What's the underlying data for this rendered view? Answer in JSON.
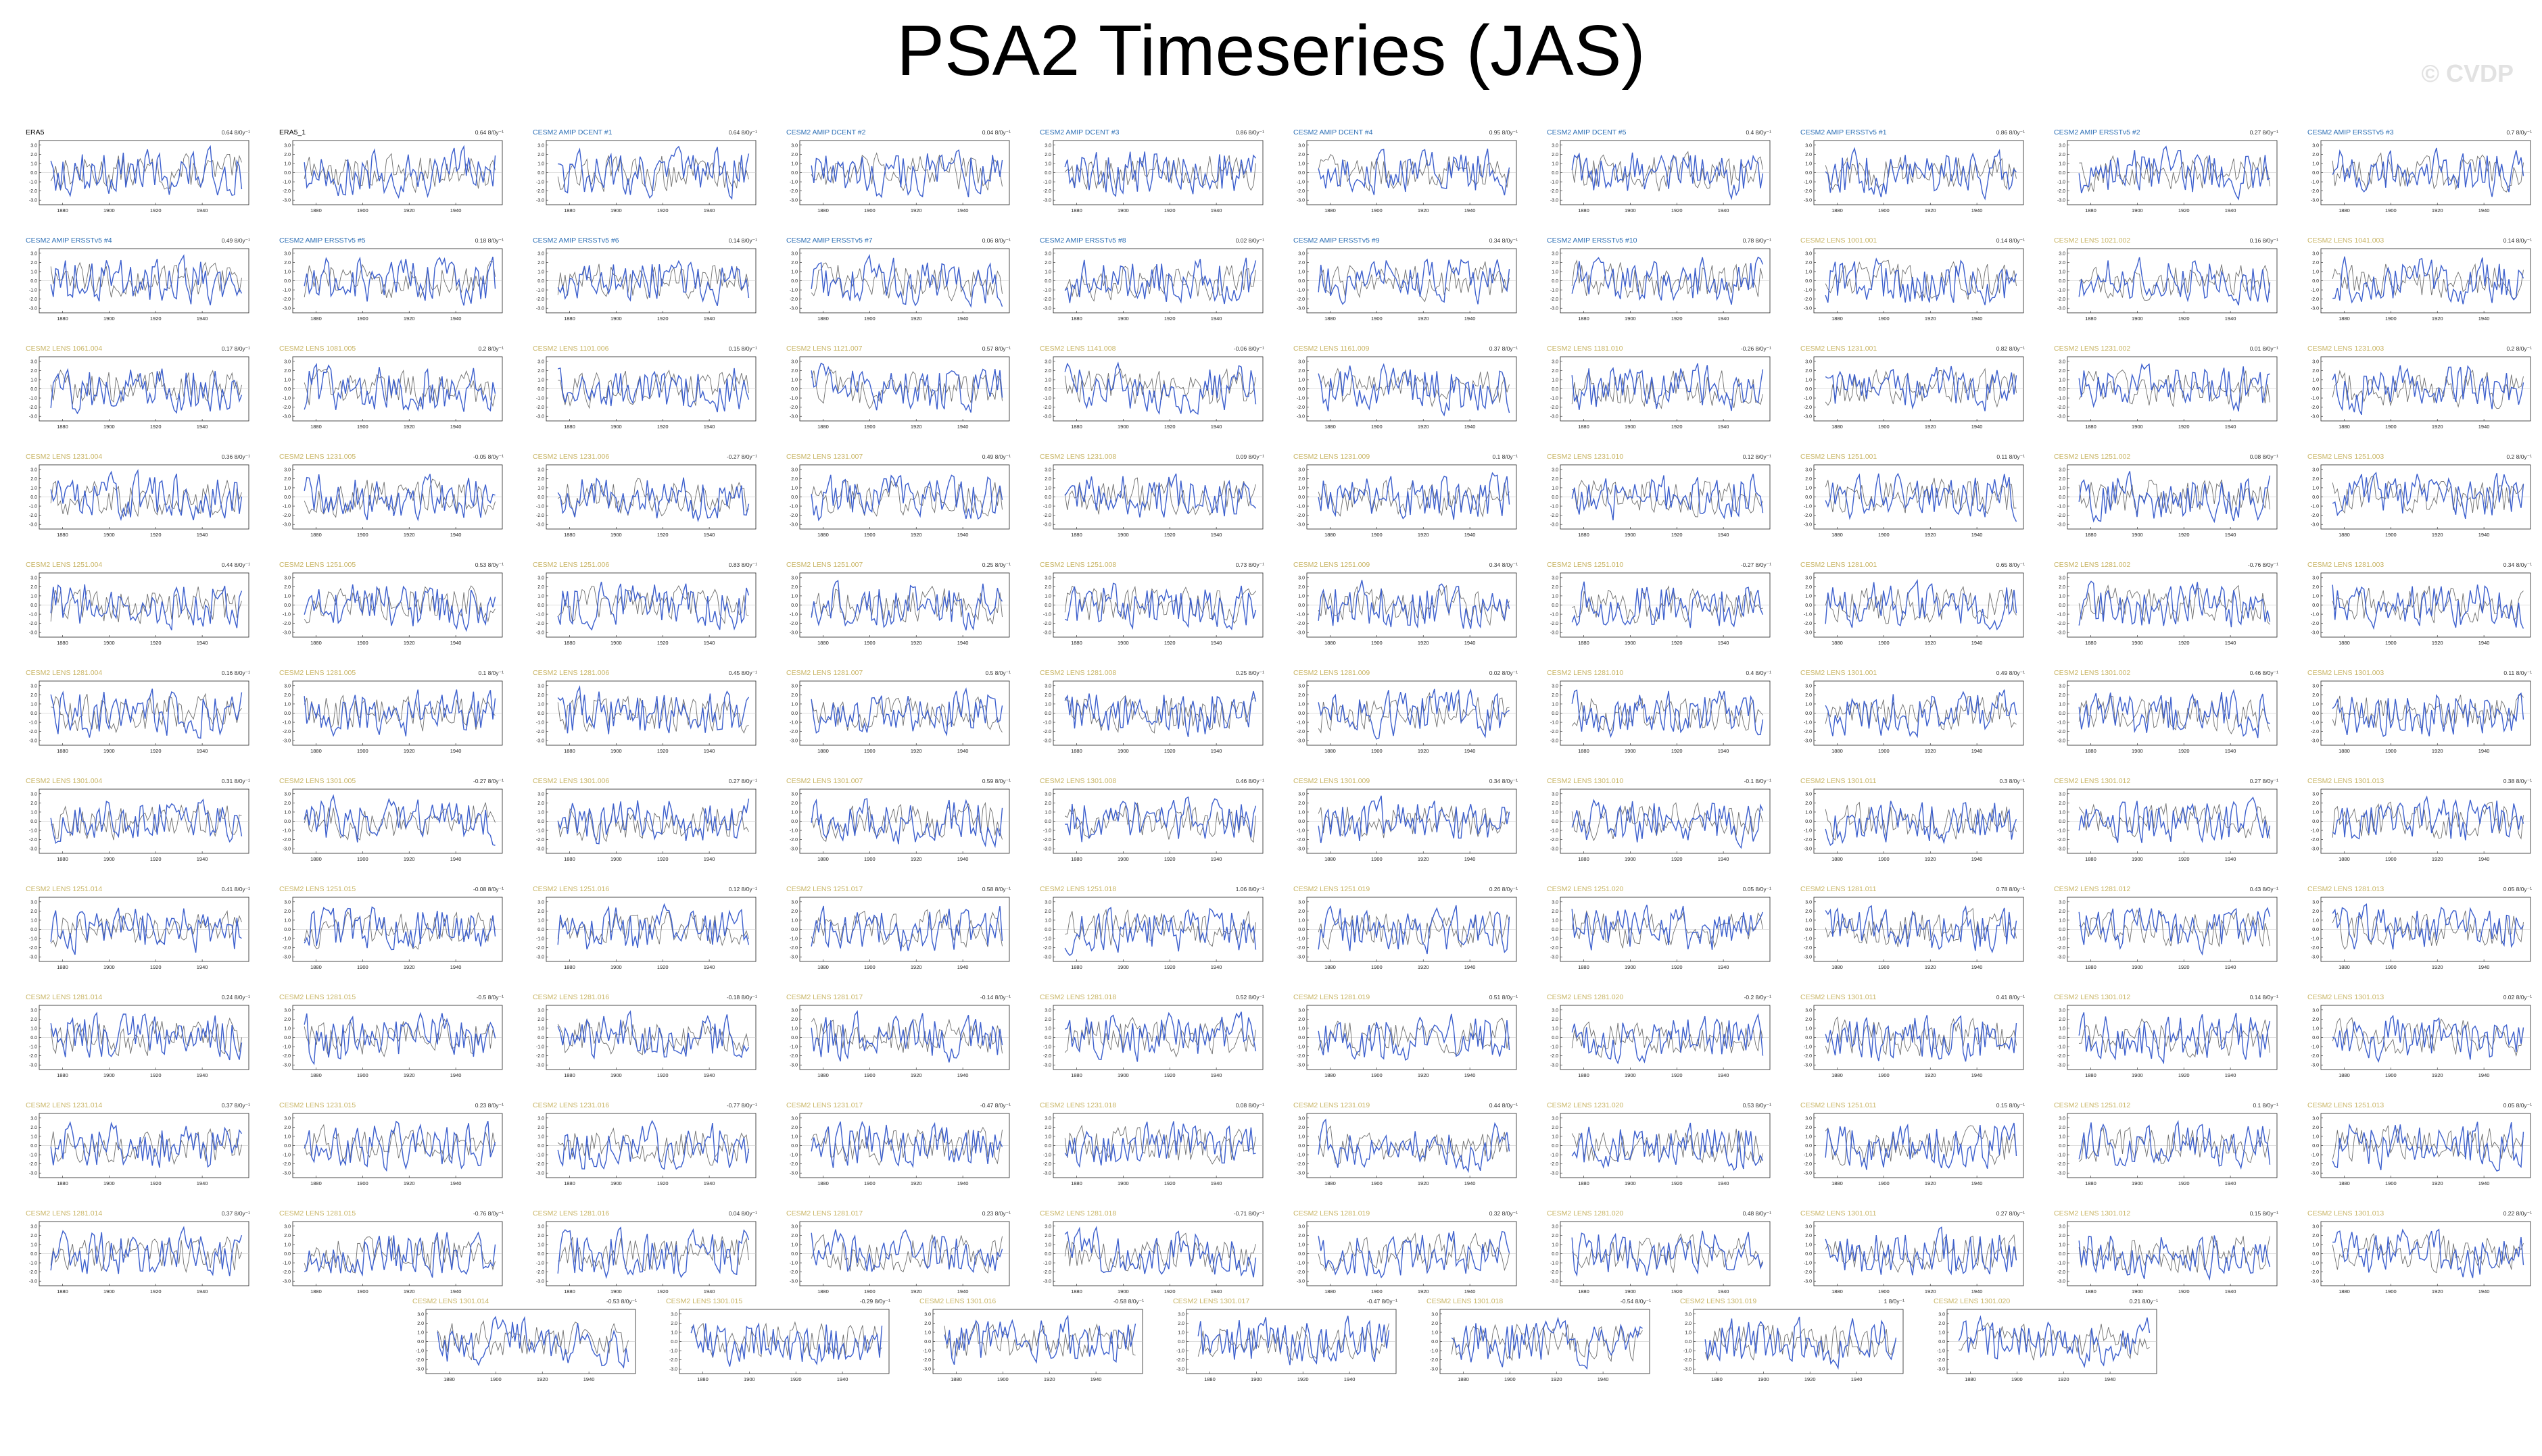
{
  "title": "PSA2 Timeseries (JAS)",
  "credit": "© CVDP",
  "colors": {
    "model": "#3c5fcd",
    "obs": "#6e6e6e",
    "lens": "#c8b464",
    "amip": "#2d6fb5",
    "obsLabel": "#000000"
  },
  "chart_data": {
    "type": "line",
    "layout": "panel grid of paired timeseries (observations in gray, simulation in blue)",
    "x_axis": {
      "ticks": [
        1880,
        1900,
        1920,
        1940
      ],
      "range": [
        1870,
        1960
      ]
    },
    "y_axis": {
      "ticks": [
        3.0,
        2.0,
        1.0,
        0.0,
        -1.0,
        -2.0,
        -3.0
      ],
      "range": [
        -3.5,
        3.5
      ]
    },
    "panels": [
      {
        "label": "ERA5",
        "slope": "0.64 8/0y⁻¹",
        "type": "obs"
      },
      {
        "label": "ERA5_1",
        "slope": "0.64 8/0y⁻¹",
        "type": "obs"
      },
      {
        "label": "CESM2 AMIP DCENT #1",
        "slope": "0.64 8/0y⁻¹",
        "type": "amip"
      },
      {
        "label": "CESM2 AMIP DCENT #2",
        "slope": "0.04 8/0y⁻¹",
        "type": "amip"
      },
      {
        "label": "CESM2 AMIP DCENT #3",
        "slope": "0.86 8/0y⁻¹",
        "type": "amip"
      },
      {
        "label": "CESM2 AMIP DCENT #4",
        "slope": "0.95 8/0y⁻¹",
        "type": "amip"
      },
      {
        "label": "CESM2 AMIP DCENT #5",
        "slope": "0.4 8/0y⁻¹",
        "type": "amip"
      },
      {
        "label": "CESM2 AMIP ERSSTv5 #1",
        "slope": "0.86 8/0y⁻¹",
        "type": "amip"
      },
      {
        "label": "CESM2 AMIP ERSSTv5 #2",
        "slope": "0.27 8/0y⁻¹",
        "type": "amip"
      },
      {
        "label": "CESM2 AMIP ERSSTv5 #3",
        "slope": "0.7 8/0y⁻¹",
        "type": "amip"
      },
      {
        "label": "CESM2 AMIP ERSSTv5 #4",
        "slope": "0.49 8/0y⁻¹",
        "type": "amip"
      },
      {
        "label": "CESM2 AMIP ERSSTv5 #5",
        "slope": "0.18 8/0y⁻¹",
        "type": "amip"
      },
      {
        "label": "CESM2 AMIP ERSSTv5 #6",
        "slope": "0.14 8/0y⁻¹",
        "type": "amip"
      },
      {
        "label": "CESM2 AMIP ERSSTv5 #7",
        "slope": "0.06 8/0y⁻¹",
        "type": "amip"
      },
      {
        "label": "CESM2 AMIP ERSSTv5 #8",
        "slope": "0.02 8/0y⁻¹",
        "type": "amip"
      },
      {
        "label": "CESM2 AMIP ERSSTv5 #9",
        "slope": "0.34 8/0y⁻¹",
        "type": "amip"
      },
      {
        "label": "CESM2 AMIP ERSSTv5 #10",
        "slope": "0.78 8/0y⁻¹",
        "type": "amip"
      },
      {
        "label": "CESM2 LENS 1001.001",
        "slope": "0.14 8/0y⁻¹",
        "type": "lens"
      },
      {
        "label": "CESM2 LENS 1021.002",
        "slope": "0.16 8/0y⁻¹",
        "type": "lens"
      },
      {
        "label": "CESM2 LENS 1041.003",
        "slope": "0.14 8/0y⁻¹",
        "type": "lens"
      },
      {
        "label": "CESM2 LENS 1061.004",
        "slope": "0.17 8/0y⁻¹",
        "type": "lens"
      },
      {
        "label": "CESM2 LENS 1081.005",
        "slope": "0.2 8/0y⁻¹",
        "type": "lens"
      },
      {
        "label": "CESM2 LENS 1101.006",
        "slope": "0.15 8/0y⁻¹",
        "type": "lens"
      },
      {
        "label": "CESM2 LENS 1121.007",
        "slope": "0.57 8/0y⁻¹",
        "type": "lens"
      },
      {
        "label": "CESM2 LENS 1141.008",
        "slope": "-0.06 8/0y⁻¹",
        "type": "lens"
      },
      {
        "label": "CESM2 LENS 1161.009",
        "slope": "0.37 8/0y⁻¹",
        "type": "lens"
      },
      {
        "label": "CESM2 LENS 1181.010",
        "slope": "-0.26 8/0y⁻¹",
        "type": "lens"
      },
      {
        "label": "CESM2 LENS 1231.001",
        "slope": "0.82 8/0y⁻¹",
        "type": "lens"
      },
      {
        "label": "CESM2 LENS 1231.002",
        "slope": "0.01 8/0y⁻¹",
        "type": "lens"
      },
      {
        "label": "CESM2 LENS 1231.003",
        "slope": "0.2 8/0y⁻¹",
        "type": "lens"
      },
      {
        "label": "CESM2 LENS 1231.004",
        "slope": "0.36 8/0y⁻¹",
        "type": "lens"
      },
      {
        "label": "CESM2 LENS 1231.005",
        "slope": "-0.05 8/0y⁻¹",
        "type": "lens"
      },
      {
        "label": "CESM2 LENS 1231.006",
        "slope": "-0.27 8/0y⁻¹",
        "type": "lens"
      },
      {
        "label": "CESM2 LENS 1231.007",
        "slope": "0.49 8/0y⁻¹",
        "type": "lens"
      },
      {
        "label": "CESM2 LENS 1231.008",
        "slope": "0.09 8/0y⁻¹",
        "type": "lens"
      },
      {
        "label": "CESM2 LENS 1231.009",
        "slope": "0.1 8/0y⁻¹",
        "type": "lens"
      },
      {
        "label": "CESM2 LENS 1231.010",
        "slope": "0.12 8/0y⁻¹",
        "type": "lens"
      },
      {
        "label": "CESM2 LENS 1251.001",
        "slope": "0.11 8/0y⁻¹",
        "type": "lens"
      },
      {
        "label": "CESM2 LENS 1251.002",
        "slope": "0.08 8/0y⁻¹",
        "type": "lens"
      },
      {
        "label": "CESM2 LENS 1251.003",
        "slope": "0.2 8/0y⁻¹",
        "type": "lens"
      },
      {
        "label": "CESM2 LENS 1251.004",
        "slope": "0.44 8/0y⁻¹",
        "type": "lens"
      },
      {
        "label": "CESM2 LENS 1251.005",
        "slope": "0.53 8/0y⁻¹",
        "type": "lens"
      },
      {
        "label": "CESM2 LENS 1251.006",
        "slope": "0.83 8/0y⁻¹",
        "type": "lens"
      },
      {
        "label": "CESM2 LENS 1251.007",
        "slope": "0.25 8/0y⁻¹",
        "type": "lens"
      },
      {
        "label": "CESM2 LENS 1251.008",
        "slope": "0.73 8/0y⁻¹",
        "type": "lens"
      },
      {
        "label": "CESM2 LENS 1251.009",
        "slope": "0.34 8/0y⁻¹",
        "type": "lens"
      },
      {
        "label": "CESM2 LENS 1251.010",
        "slope": "-0.27 8/0y⁻¹",
        "type": "lens"
      },
      {
        "label": "CESM2 LENS 1281.001",
        "slope": "0.65 8/0y⁻¹",
        "type": "lens"
      },
      {
        "label": "CESM2 LENS 1281.002",
        "slope": "-0.76 8/0y⁻¹",
        "type": "lens"
      },
      {
        "label": "CESM2 LENS 1281.003",
        "slope": "0.34 8/0y⁻¹",
        "type": "lens"
      },
      {
        "label": "CESM2 LENS 1281.004",
        "slope": "0.16 8/0y⁻¹",
        "type": "lens"
      },
      {
        "label": "CESM2 LENS 1281.005",
        "slope": "0.1 8/0y⁻¹",
        "type": "lens"
      },
      {
        "label": "CESM2 LENS 1281.006",
        "slope": "0.45 8/0y⁻¹",
        "type": "lens"
      },
      {
        "label": "CESM2 LENS 1281.007",
        "slope": "0.5 8/0y⁻¹",
        "type": "lens"
      },
      {
        "label": "CESM2 LENS 1281.008",
        "slope": "0.25 8/0y⁻¹",
        "type": "lens"
      },
      {
        "label": "CESM2 LENS 1281.009",
        "slope": "0.02 8/0y⁻¹",
        "type": "lens"
      },
      {
        "label": "CESM2 LENS 1281.010",
        "slope": "0.4 8/0y⁻¹",
        "type": "lens"
      },
      {
        "label": "CESM2 LENS 1301.001",
        "slope": "0.49 8/0y⁻¹",
        "type": "lens"
      },
      {
        "label": "CESM2 LENS 1301.002",
        "slope": "0.46 8/0y⁻¹",
        "type": "lens"
      },
      {
        "label": "CESM2 LENS 1301.003",
        "slope": "0.11 8/0y⁻¹",
        "type": "lens"
      },
      {
        "label": "CESM2 LENS 1301.004",
        "slope": "0.31 8/0y⁻¹",
        "type": "lens"
      },
      {
        "label": "CESM2 LENS 1301.005",
        "slope": "-0.27 8/0y⁻¹",
        "type": "lens"
      },
      {
        "label": "CESM2 LENS 1301.006",
        "slope": "0.27 8/0y⁻¹",
        "type": "lens"
      },
      {
        "label": "CESM2 LENS 1301.007",
        "slope": "0.59 8/0y⁻¹",
        "type": "lens"
      },
      {
        "label": "CESM2 LENS 1301.008",
        "slope": "0.46 8/0y⁻¹",
        "type": "lens"
      },
      {
        "label": "CESM2 LENS 1301.009",
        "slope": "0.34 8/0y⁻¹",
        "type": "lens"
      },
      {
        "label": "CESM2 LENS 1301.010",
        "slope": "-0.1 8/0y⁻¹",
        "type": "lens"
      },
      {
        "label": "CESM2 LENS 1301.011",
        "slope": "0.3 8/0y⁻¹",
        "type": "lens"
      },
      {
        "label": "CESM2 LENS 1301.012",
        "slope": "0.27 8/0y⁻¹",
        "type": "lens"
      },
      {
        "label": "CESM2 LENS 1301.013",
        "slope": "0.38 8/0y⁻¹",
        "type": "lens"
      },
      {
        "label": "CESM2 LENS 1251.014",
        "slope": "0.41 8/0y⁻¹",
        "type": "lens"
      },
      {
        "label": "CESM2 LENS 1251.015",
        "slope": "-0.08 8/0y⁻¹",
        "type": "lens"
      },
      {
        "label": "CESM2 LENS 1251.016",
        "slope": "0.12 8/0y⁻¹",
        "type": "lens"
      },
      {
        "label": "CESM2 LENS 1251.017",
        "slope": "0.58 8/0y⁻¹",
        "type": "lens"
      },
      {
        "label": "CESM2 LENS 1251.018",
        "slope": "1.06 8/0y⁻¹",
        "type": "lens"
      },
      {
        "label": "CESM2 LENS 1251.019",
        "slope": "0.26 8/0y⁻¹",
        "type": "lens"
      },
      {
        "label": "CESM2 LENS 1251.020",
        "slope": "0.05 8/0y⁻¹",
        "type": "lens"
      },
      {
        "label": "CESM2 LENS 1281.011",
        "slope": "0.78 8/0y⁻¹",
        "type": "lens"
      },
      {
        "label": "CESM2 LENS 1281.012",
        "slope": "0.43 8/0y⁻¹",
        "type": "lens"
      },
      {
        "label": "CESM2 LENS 1281.013",
        "slope": "0.05 8/0y⁻¹",
        "type": "lens"
      },
      {
        "label": "CESM2 LENS 1281.014",
        "slope": "0.24 8/0y⁻¹",
        "type": "lens"
      },
      {
        "label": "CESM2 LENS 1281.015",
        "slope": "-0.5 8/0y⁻¹",
        "type": "lens"
      },
      {
        "label": "CESM2 LENS 1281.016",
        "slope": "-0.18 8/0y⁻¹",
        "type": "lens"
      },
      {
        "label": "CESM2 LENS 1281.017",
        "slope": "-0.14 8/0y⁻¹",
        "type": "lens"
      },
      {
        "label": "CESM2 LENS 1281.018",
        "slope": "0.52 8/0y⁻¹",
        "type": "lens"
      },
      {
        "label": "CESM2 LENS 1281.019",
        "slope": "0.51 8/0y⁻¹",
        "type": "lens"
      },
      {
        "label": "CESM2 LENS 1281.020",
        "slope": "-0.2 8/0y⁻¹",
        "type": "lens"
      },
      {
        "label": "CESM2 LENS 1301.011",
        "slope": "0.41 8/0y⁻¹",
        "type": "lens"
      },
      {
        "label": "CESM2 LENS 1301.012",
        "slope": "0.14 8/0y⁻¹",
        "type": "lens"
      },
      {
        "label": "CESM2 LENS 1301.013",
        "slope": "0.02 8/0y⁻¹",
        "type": "lens"
      },
      {
        "label": "CESM2 LENS 1231.014",
        "slope": "0.37 8/0y⁻¹",
        "type": "lens"
      },
      {
        "label": "CESM2 LENS 1231.015",
        "slope": "0.23 8/0y⁻¹",
        "type": "lens"
      },
      {
        "label": "CESM2 LENS 1231.016",
        "slope": "-0.77 8/0y⁻¹",
        "type": "lens"
      },
      {
        "label": "CESM2 LENS 1231.017",
        "slope": "-0.47 8/0y⁻¹",
        "type": "lens"
      },
      {
        "label": "CESM2 LENS 1231.018",
        "slope": "0.08 8/0y⁻¹",
        "type": "lens"
      },
      {
        "label": "CESM2 LENS 1231.019",
        "slope": "0.44 8/0y⁻¹",
        "type": "lens"
      },
      {
        "label": "CESM2 LENS 1231.020",
        "slope": "0.53 8/0y⁻¹",
        "type": "lens"
      },
      {
        "label": "CESM2 LENS 1251.011",
        "slope": "0.15 8/0y⁻¹",
        "type": "lens"
      },
      {
        "label": "CESM2 LENS 1251.012",
        "slope": "0.1 8/0y⁻¹",
        "type": "lens"
      },
      {
        "label": "CESM2 LENS 1251.013",
        "slope": "0.05 8/0y⁻¹",
        "type": "lens"
      },
      {
        "label": "CESM2 LENS 1281.014",
        "slope": "0.37 8/0y⁻¹",
        "type": "lens"
      },
      {
        "label": "CESM2 LENS 1281.015",
        "slope": "-0.76 8/0y⁻¹",
        "type": "lens"
      },
      {
        "label": "CESM2 LENS 1281.016",
        "slope": "0.04 8/0y⁻¹",
        "type": "lens"
      },
      {
        "label": "CESM2 LENS 1281.017",
        "slope": "0.23 8/0y⁻¹",
        "type": "lens"
      },
      {
        "label": "CESM2 LENS 1281.018",
        "slope": "-0.71 8/0y⁻¹",
        "type": "lens"
      },
      {
        "label": "CESM2 LENS 1281.019",
        "slope": "0.32 8/0y⁻¹",
        "type": "lens"
      },
      {
        "label": "CESM2 LENS 1281.020",
        "slope": "0.48 8/0y⁻¹",
        "type": "lens"
      },
      {
        "label": "CESM2 LENS 1301.011",
        "slope": "0.27 8/0y⁻¹",
        "type": "lens"
      },
      {
        "label": "CESM2 LENS 1301.012",
        "slope": "0.15 8/0y⁻¹",
        "type": "lens"
      },
      {
        "label": "CESM2 LENS 1301.013",
        "slope": "0.22 8/0y⁻¹",
        "type": "lens"
      },
      {
        "label": "CESM2 LENS 1301.014",
        "slope": "-0.53 8/0y⁻¹",
        "type": "lens"
      },
      {
        "label": "CESM2 LENS 1301.015",
        "slope": "-0.29 8/0y⁻¹",
        "type": "lens"
      },
      {
        "label": "CESM2 LENS 1301.016",
        "slope": "-0.58 8/0y⁻¹",
        "type": "lens"
      },
      {
        "label": "CESM2 LENS 1301.017",
        "slope": "-0.47 8/0y⁻¹",
        "type": "lens"
      },
      {
        "label": "CESM2 LENS 1301.018",
        "slope": "-0.54 8/0y⁻¹",
        "type": "lens"
      },
      {
        "label": "CESM2 LENS 1301.019",
        "slope": "1 8/0y⁻¹",
        "type": "lens"
      },
      {
        "label": "CESM2 LENS 1301.020",
        "slope": "0.21 8/0y⁻¹",
        "type": "lens"
      }
    ]
  }
}
